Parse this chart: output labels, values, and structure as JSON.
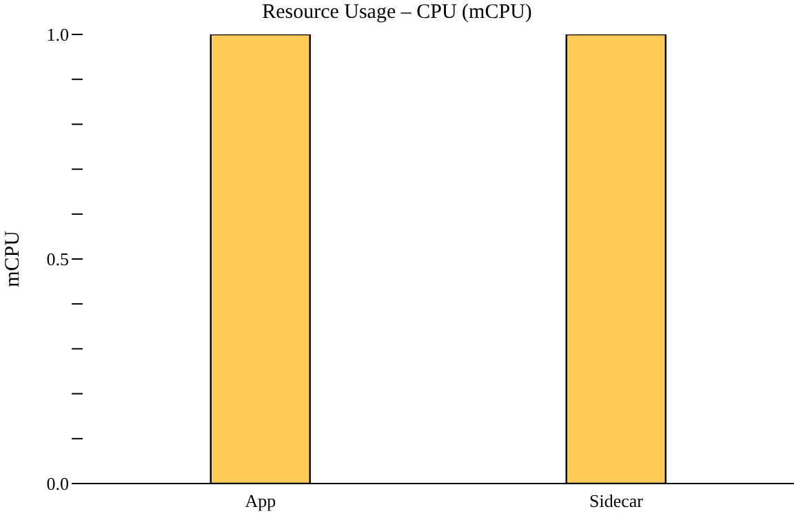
{
  "chart_data": {
    "type": "bar",
    "title": "Resource Usage – CPU (mCPU)",
    "ylabel": "mCPU",
    "categories": [
      "App",
      "Sidecar"
    ],
    "values": [
      1.0,
      1.0
    ],
    "color": "#fecb57",
    "ylim": [
      0,
      1.0
    ],
    "yticks": [
      {
        "value": 0,
        "label": "0.0"
      },
      {
        "value": 0.1,
        "label": null
      },
      {
        "value": 0.2,
        "label": null
      },
      {
        "value": 0.3,
        "label": null
      },
      {
        "value": 0.4,
        "label": null
      },
      {
        "value": 0.5,
        "label": "0.5"
      },
      {
        "value": 0.6,
        "label": null
      },
      {
        "value": 0.7,
        "label": null
      },
      {
        "value": 0.8,
        "label": null
      },
      {
        "value": 0.9,
        "label": null
      },
      {
        "value": 1.0,
        "label": "1.0"
      }
    ],
    "grid": false,
    "legend": false
  }
}
